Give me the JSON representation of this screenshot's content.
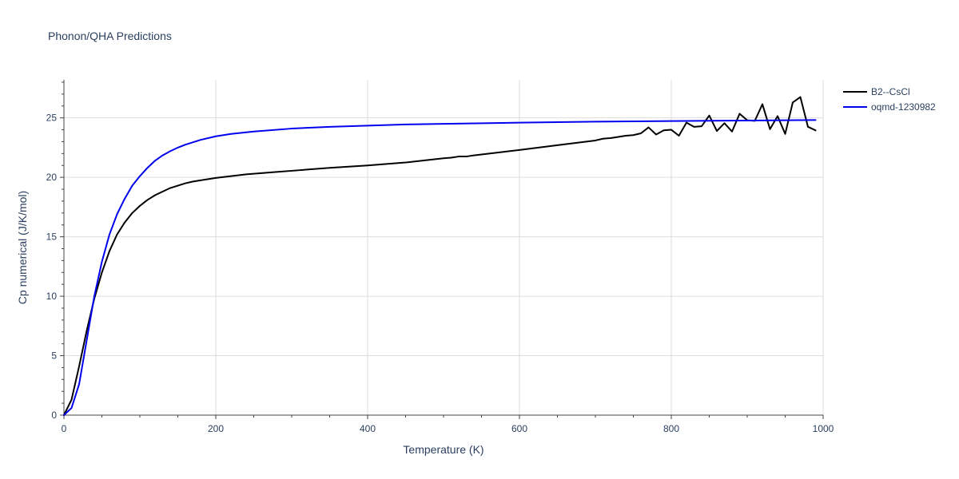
{
  "chart_data": {
    "type": "line",
    "title": "Phonon/QHA Predictions",
    "xlabel": "Temperature (K)",
    "ylabel": "Cp numerical (J/K/mol)",
    "xlim": [
      0,
      1000
    ],
    "ylim": [
      0,
      28.2
    ],
    "xticks": [
      0,
      200,
      400,
      600,
      800,
      1000
    ],
    "yticks": [
      0,
      5,
      10,
      15,
      20,
      25
    ],
    "grid": true,
    "legend_position": "top-right",
    "series": [
      {
        "name": "B2--CsCl",
        "color": "#000000",
        "x": [
          0,
          10,
          20,
          30,
          40,
          50,
          60,
          70,
          80,
          90,
          100,
          110,
          120,
          130,
          140,
          150,
          160,
          170,
          180,
          190,
          200,
          220,
          240,
          260,
          280,
          300,
          350,
          400,
          450,
          500,
          510,
          520,
          530,
          540,
          560,
          580,
          600,
          650,
          700,
          710,
          720,
          730,
          740,
          750,
          760,
          770,
          780,
          790,
          800,
          810,
          820,
          830,
          840,
          850,
          860,
          870,
          880,
          890,
          900,
          910,
          920,
          930,
          940,
          950,
          960,
          970,
          980,
          990
        ],
        "values": [
          0,
          1.3,
          4.1,
          7.1,
          9.8,
          12.0,
          13.8,
          15.2,
          16.2,
          17.0,
          17.6,
          18.1,
          18.5,
          18.8,
          19.1,
          19.3,
          19.5,
          19.65,
          19.75,
          19.85,
          19.95,
          20.1,
          20.25,
          20.35,
          20.45,
          20.55,
          20.8,
          21.0,
          21.25,
          21.6,
          21.65,
          21.75,
          21.75,
          21.85,
          22.0,
          22.15,
          22.3,
          22.7,
          23.1,
          23.25,
          23.3,
          23.4,
          23.5,
          23.55,
          23.7,
          24.2,
          23.6,
          23.95,
          24.0,
          23.5,
          24.6,
          24.25,
          24.3,
          25.2,
          23.9,
          24.55,
          23.85,
          25.35,
          24.8,
          24.75,
          26.15,
          24.05,
          25.15,
          23.65,
          26.3,
          26.75,
          24.25,
          23.95
        ]
      },
      {
        "name": "oqmd-1230982",
        "color": "#0000ee",
        "x": [
          0,
          10,
          20,
          30,
          40,
          50,
          60,
          70,
          80,
          90,
          100,
          110,
          120,
          130,
          140,
          150,
          160,
          170,
          180,
          200,
          220,
          250,
          300,
          350,
          400,
          450,
          500,
          600,
          700,
          800,
          900,
          990
        ],
        "values": [
          0,
          0.6,
          2.6,
          6.3,
          10.0,
          12.9,
          15.2,
          16.9,
          18.2,
          19.3,
          20.1,
          20.8,
          21.4,
          21.85,
          22.2,
          22.5,
          22.75,
          22.95,
          23.15,
          23.45,
          23.65,
          23.85,
          24.1,
          24.25,
          24.35,
          24.45,
          24.5,
          24.6,
          24.68,
          24.73,
          24.78,
          24.82
        ]
      }
    ]
  }
}
